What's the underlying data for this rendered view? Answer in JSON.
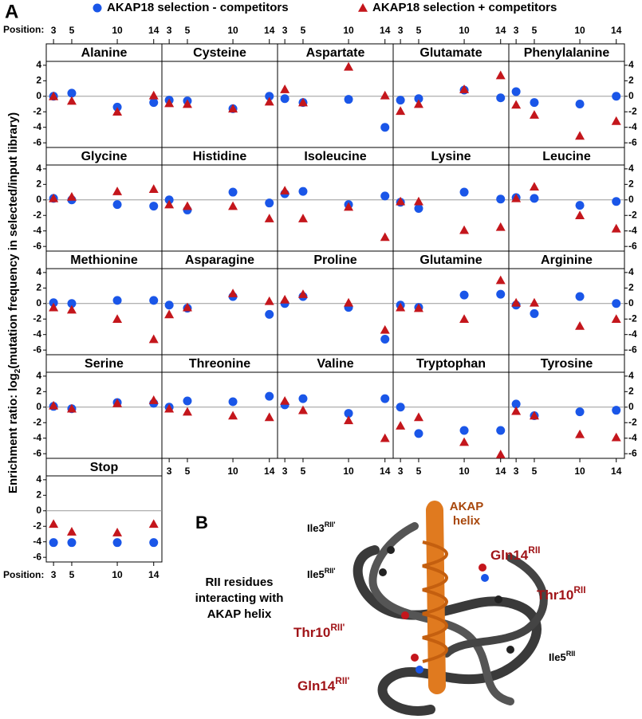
{
  "chart_data": {
    "type": "scatter",
    "panel_label": "A",
    "xlabel": "Position:",
    "ylabel": {
      "before": "Enrichment ratio: log",
      "sub": "2",
      "after": "(mutation frequency in selected/input library)"
    },
    "x": [
      3,
      5,
      10,
      14
    ],
    "xlim": [
      2.2,
      14.9
    ],
    "xticks": [
      3,
      5,
      10,
      14
    ],
    "ylim": [
      -6.6,
      4.5
    ],
    "yticks": [
      4,
      2,
      0,
      -2,
      -4,
      -6
    ],
    "hline": 0,
    "series": [
      {
        "name": "AKAP18 selection - competitors",
        "color": "#1a56e8",
        "marker": "circle"
      },
      {
        "name": "AKAP18 selection + competitors",
        "color": "#c4161c",
        "marker": "triangle"
      }
    ],
    "panels": [
      {
        "title": "Alanine",
        "series": [
          {
            "values": [
              0,
              0.4,
              -1.4,
              -0.8
            ]
          },
          {
            "values": [
              0,
              -0.6,
              -2,
              0.1
            ]
          }
        ]
      },
      {
        "title": "Cysteine",
        "series": [
          {
            "values": [
              -0.5,
              -0.6,
              -1.6,
              0
            ]
          },
          {
            "values": [
              -0.9,
              -1,
              -1.6,
              -0.7
            ]
          }
        ]
      },
      {
        "title": "Aspartate",
        "series": [
          {
            "values": [
              -0.3,
              -0.8,
              -0.4,
              -4
            ]
          },
          {
            "values": [
              0.9,
              -0.8,
              3.8,
              0.1
            ]
          }
        ]
      },
      {
        "title": "Glutamate",
        "series": [
          {
            "values": [
              -0.5,
              -0.3,
              0.8,
              -0.2
            ]
          },
          {
            "values": [
              -1.9,
              -1,
              0.9,
              2.7
            ]
          }
        ]
      },
      {
        "title": "Phenylalanine",
        "series": [
          {
            "values": [
              0.6,
              -0.8,
              -1,
              0
            ]
          },
          {
            "values": [
              -1.1,
              -2.4,
              -5.1,
              -3.2
            ]
          }
        ]
      },
      {
        "title": "Glycine",
        "series": [
          {
            "values": [
              0.2,
              0,
              -0.6,
              -0.8
            ]
          },
          {
            "values": [
              0.2,
              0.4,
              1.1,
              1.4
            ]
          }
        ]
      },
      {
        "title": "Histidine",
        "series": [
          {
            "values": [
              0,
              -1.3,
              1,
              -0.4
            ]
          },
          {
            "values": [
              -0.6,
              -0.8,
              -0.8,
              -2.4
            ]
          }
        ]
      },
      {
        "title": "Isoleucine",
        "series": [
          {
            "values": [
              0.8,
              1.1,
              -0.6,
              0.5
            ]
          },
          {
            "values": [
              1.2,
              -2.4,
              -0.9,
              -4.8
            ]
          }
        ]
      },
      {
        "title": "Lysine",
        "series": [
          {
            "values": [
              -0.3,
              -1.1,
              1,
              0.1
            ]
          },
          {
            "values": [
              -0.2,
              -0.2,
              -3.9,
              -3.5
            ]
          }
        ]
      },
      {
        "title": "Leucine",
        "series": [
          {
            "values": [
              0.3,
              0.2,
              -0.7,
              -0.2
            ]
          },
          {
            "values": [
              0.2,
              1.7,
              -2,
              -3.7
            ]
          }
        ]
      },
      {
        "title": "Methionine",
        "series": [
          {
            "values": [
              0.1,
              0,
              0.4,
              0.4
            ]
          },
          {
            "values": [
              -0.5,
              -0.8,
              -2,
              -4.6
            ]
          }
        ]
      },
      {
        "title": "Asparagine",
        "series": [
          {
            "values": [
              -0.2,
              -0.6,
              0.9,
              -1.4
            ]
          },
          {
            "values": [
              -1.4,
              -0.5,
              1.3,
              0.3
            ]
          }
        ]
      },
      {
        "title": "Proline",
        "series": [
          {
            "values": [
              0,
              0.9,
              -0.5,
              -4.6
            ]
          },
          {
            "values": [
              0.5,
              1.2,
              0.1,
              -3.4
            ]
          }
        ]
      },
      {
        "title": "Glutamine",
        "series": [
          {
            "values": [
              -0.2,
              -0.5,
              1.1,
              1.2
            ]
          },
          {
            "values": [
              -0.5,
              -0.6,
              -2,
              3
            ]
          }
        ]
      },
      {
        "title": "Arginine",
        "series": [
          {
            "values": [
              -0.2,
              -1.3,
              0.9,
              0
            ]
          },
          {
            "values": [
              0.1,
              0.1,
              -2.9,
              -2
            ]
          }
        ]
      },
      {
        "title": "Serine",
        "series": [
          {
            "values": [
              0.1,
              -0.2,
              0.6,
              0.5
            ]
          },
          {
            "values": [
              0.2,
              -0.2,
              0.5,
              0.9
            ]
          }
        ]
      },
      {
        "title": "Threonine",
        "series": [
          {
            "values": [
              0,
              0.8,
              0.7,
              1.4
            ]
          },
          {
            "values": [
              -0.2,
              -0.6,
              -1.1,
              -1.3
            ]
          }
        ]
      },
      {
        "title": "Valine",
        "series": [
          {
            "values": [
              0.3,
              1.1,
              -0.8,
              1.1
            ]
          },
          {
            "values": [
              0.8,
              -0.4,
              -1.7,
              -4
            ]
          }
        ]
      },
      {
        "title": "Tryptophan",
        "series": [
          {
            "values": [
              0,
              -3.4,
              -3,
              -3
            ]
          },
          {
            "values": [
              -2.4,
              -1.3,
              -4.5,
              -6.1
            ]
          }
        ]
      },
      {
        "title": "Tyrosine",
        "series": [
          {
            "values": [
              0.4,
              -1.1,
              -0.6,
              -0.4
            ]
          },
          {
            "values": [
              -0.5,
              -1.1,
              -3.5,
              -3.9
            ]
          }
        ]
      },
      {
        "title": "Stop",
        "series": [
          {
            "values": [
              -4.1,
              -4.1,
              -4.1,
              -4.1
            ]
          },
          {
            "values": [
              -1.7,
              -2.7,
              -2.8,
              -1.7
            ]
          }
        ]
      }
    ]
  },
  "panel_b": {
    "label": "B",
    "caption": [
      "RII residues",
      "interacting with",
      "AKAP helix"
    ],
    "helix_label": [
      "AKAP",
      "helix"
    ],
    "residues": [
      {
        "name": "Ile",
        "num": "3",
        "sup": "RII'"
      },
      {
        "name": "Ile",
        "num": "5",
        "sup": "RII'"
      },
      {
        "name": "Gln",
        "num": "14",
        "sup": "RII"
      },
      {
        "name": "Thr",
        "num": "10",
        "sup": "RII"
      },
      {
        "name": "Thr",
        "num": "10",
        "sup": "RII'"
      },
      {
        "name": "Ile",
        "num": "5",
        "sup": "RII"
      },
      {
        "name": "Gln",
        "num": "14",
        "sup": "RII'"
      }
    ]
  }
}
